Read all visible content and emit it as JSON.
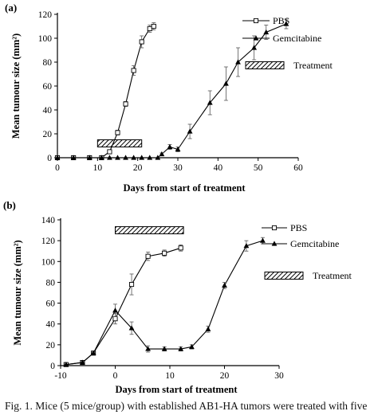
{
  "caption": "Fig. 1. Mice (5 mice/group) with established AB1-HA tumors were treated with five",
  "colors": {
    "ink": "#000000",
    "errorbar": "#555555",
    "hatch_bg": "#ffffff"
  },
  "chart_data": [
    {
      "type": "line",
      "panel_label": "(a)",
      "xlabel": "Days from start of treatment",
      "ylabel": "Mean tumour size (mm²)",
      "xlim": [
        0,
        60
      ],
      "ylim": [
        0,
        120
      ],
      "xticks": [
        0,
        10,
        20,
        30,
        40,
        50,
        60
      ],
      "yticks": [
        0,
        20,
        40,
        60,
        80,
        100,
        120
      ],
      "legend_placement": "top-right",
      "series": [
        {
          "name": "PBS",
          "marker": "open-square",
          "x": [
            0,
            4,
            8,
            11,
            13,
            15,
            17,
            19,
            21,
            23,
            24
          ],
          "y": [
            0,
            0,
            0,
            0,
            5,
            21,
            45,
            73,
            97,
            108,
            110
          ],
          "err": [
            0,
            0,
            0,
            0,
            1,
            2,
            2,
            4,
            5,
            3,
            3
          ]
        },
        {
          "name": "Gemcitabine",
          "marker": "filled-triangle",
          "x": [
            0,
            4,
            8,
            11,
            13,
            15,
            17,
            19,
            21,
            23,
            25,
            26,
            28,
            30,
            33,
            38,
            42,
            45,
            49,
            52,
            57
          ],
          "y": [
            0,
            0,
            0,
            0,
            0,
            0,
            0,
            0,
            0,
            0,
            0,
            3,
            9,
            7,
            22,
            46,
            62,
            80,
            92,
            105,
            112
          ],
          "err": [
            0,
            0,
            0,
            0,
            0,
            0,
            0,
            0,
            0,
            0,
            0,
            1,
            2,
            2,
            6,
            10,
            14,
            12,
            10,
            6,
            4
          ]
        }
      ],
      "treatment": {
        "name": "Treatment",
        "x_start": 10,
        "x_end": 21,
        "y": 12
      }
    },
    {
      "type": "line",
      "panel_label": "(b)",
      "xlabel": "Days from start of treatment",
      "ylabel": "Mean tumour size (mm²)",
      "xlim": [
        -10,
        30
      ],
      "ylim": [
        0,
        140
      ],
      "xticks": [
        -10,
        0,
        10,
        20,
        30
      ],
      "yticks": [
        0,
        20,
        40,
        60,
        80,
        100,
        120,
        140
      ],
      "legend_placement": "top-right",
      "series": [
        {
          "name": "PBS",
          "marker": "open-square",
          "x": [
            -9,
            -6,
            -4,
            0,
            3,
            6,
            9,
            12
          ],
          "y": [
            1,
            3,
            12,
            45,
            78,
            105,
            108,
            113
          ],
          "err": [
            0,
            1,
            1,
            5,
            10,
            4,
            3,
            3
          ]
        },
        {
          "name": "Gemcitabine",
          "marker": "filled-triangle",
          "x": [
            -9,
            -6,
            -4,
            0,
            3,
            6,
            9,
            12,
            14,
            17,
            20,
            24,
            27
          ],
          "y": [
            1,
            3,
            12,
            53,
            36,
            16,
            16,
            16,
            18,
            35,
            77,
            115,
            120
          ],
          "err": [
            0,
            1,
            1,
            6,
            6,
            3,
            2,
            2,
            2,
            3,
            3,
            5,
            3
          ]
        }
      ],
      "treatment": {
        "name": "Treatment",
        "x_start": 0,
        "x_end": 12.5,
        "y": 130
      }
    }
  ]
}
